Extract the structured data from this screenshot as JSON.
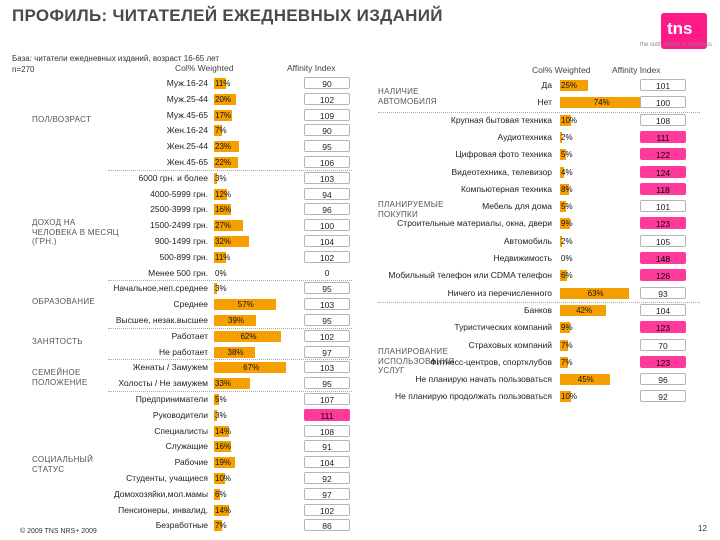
{
  "title": "ПРОФИЛЬ: ЧИТАТЕЛЕЙ ЕЖЕДНЕВНЫХ ИЗДАНИЙ",
  "logo": {
    "text": "tns",
    "tagline": "the sixth sense of business"
  },
  "base_line1": "База: читатели ежедневных изданий, возраст 16-65 лет",
  "base_line2": "n=270",
  "headers": {
    "col_weighted": "Col% Weighted",
    "affinity": "Affinity Index"
  },
  "footer": "© 2009 TNS NRS+ 2009",
  "page_number": "12",
  "colors": {
    "bar": "#f5a000",
    "highlight": "#ff3a9a"
  },
  "chart_data": [
    {
      "type": "bar",
      "title": "ПРОФИЛЬ: ЧИТАТЕЛЕЙ ЕЖЕДНЕВНЫХ ИЗДАНИЙ",
      "xlabel": "Col% Weighted",
      "ylabel": "",
      "xlim": [
        0,
        100
      ],
      "groups": [
        {
          "label": "ПОЛ/ВОЗРАСТ",
          "rows": [
            {
              "label": "Муж.16-24",
              "value": 11,
              "affinity": 90
            },
            {
              "label": "Муж.25-44",
              "value": 20,
              "affinity": 102
            },
            {
              "label": "Муж.45-65",
              "value": 17,
              "affinity": 109
            },
            {
              "label": "Жен.16-24",
              "value": 7,
              "affinity": 90
            },
            {
              "label": "Жен.25-44",
              "value": 23,
              "affinity": 95
            },
            {
              "label": "Жен.45-65",
              "value": 22,
              "affinity": 106
            }
          ]
        },
        {
          "label": "ДОХОД НА ЧЕЛОВЕКА В МЕСЯЦ (ГРН.)",
          "rows": [
            {
              "label": "6000 грн. и более",
              "value": 3,
              "affinity": 103
            },
            {
              "label": "4000-5999 грн.",
              "value": 12,
              "affinity": 94
            },
            {
              "label": "2500-3999 грн.",
              "value": 16,
              "affinity": 96
            },
            {
              "label": "1500-2499 грн.",
              "value": 27,
              "affinity": 100
            },
            {
              "label": "900-1499 грн.",
              "value": 32,
              "affinity": 104
            },
            {
              "label": "500-899 грн.",
              "value": 11,
              "affinity": 102
            },
            {
              "label": "Менее 500 грн.",
              "value": 0,
              "affinity": 0
            }
          ]
        },
        {
          "label": "ОБРАЗОВАНИЕ",
          "rows": [
            {
              "label": "Начальное,неп.среднее",
              "value": 3,
              "affinity": 95
            },
            {
              "label": "Среднее",
              "value": 57,
              "affinity": 103
            },
            {
              "label": "Высшее, незак.высшее",
              "value": 39,
              "affinity": 95
            }
          ]
        },
        {
          "label": "ЗАНЯТОСТЬ",
          "rows": [
            {
              "label": "Работает",
              "value": 62,
              "affinity": 102
            },
            {
              "label": "Не работает",
              "value": 38,
              "affinity": 97
            }
          ]
        },
        {
          "label": "СЕМЕЙНОЕ ПОЛОЖЕНИЕ",
          "rows": [
            {
              "label": "Женаты / Замужем",
              "value": 67,
              "affinity": 103
            },
            {
              "label": "Холосты / Не замужем",
              "value": 33,
              "affinity": 95
            }
          ]
        },
        {
          "label": "СОЦИАЛЬНЫЙ СТАТУС",
          "rows": [
            {
              "label": "Предприниматели",
              "value": 5,
              "affinity": 107
            },
            {
              "label": "Руководители",
              "value": 3,
              "affinity": 111,
              "highlight": true
            },
            {
              "label": "Специалисты",
              "value": 14,
              "affinity": 108
            },
            {
              "label": "Служащие",
              "value": 16,
              "affinity": 91
            },
            {
              "label": "Рабочие",
              "value": 19,
              "affinity": 104
            },
            {
              "label": "Студенты, учащиеся",
              "value": 10,
              "affinity": 92
            },
            {
              "label": "Домохозяйки,мол.мамы",
              "value": 6,
              "affinity": 97
            },
            {
              "label": "Пенсионеры, инвалид.",
              "value": 14,
              "affinity": 102
            },
            {
              "label": "Безработные",
              "value": 7,
              "affinity": 86
            }
          ]
        }
      ]
    },
    {
      "type": "bar",
      "title": "ПРОФИЛЬ: ЧИТАТЕЛЕЙ ЕЖЕДНЕВНЫХ ИЗДАНИЙ",
      "xlabel": "Col% Weighted",
      "ylabel": "",
      "xlim": [
        0,
        100
      ],
      "groups": [
        {
          "label": "НАЛИЧИЕ АВТОМОБИЛЯ",
          "rows": [
            {
              "label": "Да",
              "value": 25,
              "affinity": 101
            },
            {
              "label": "Нет",
              "value": 74,
              "affinity": 100
            }
          ]
        },
        {
          "label": "ПЛАНИРУЕМЫЕ ПОКУПКИ",
          "rows": [
            {
              "label": "Крупная бытовая техника",
              "value": 10,
              "affinity": 108
            },
            {
              "label": "Аудиотехника",
              "value": 2,
              "affinity": 111,
              "highlight": true
            },
            {
              "label": "Цифровая фото техника",
              "value": 5,
              "affinity": 122,
              "highlight": true
            },
            {
              "label": "Видеотехника, телевизор",
              "value": 4,
              "affinity": 124,
              "highlight": true
            },
            {
              "label": "Компьютерная техника",
              "value": 8,
              "affinity": 118,
              "highlight": true
            },
            {
              "label": "Мебель для дома",
              "value": 5,
              "affinity": 101
            },
            {
              "label": "Строительные материалы, окна, двери",
              "value": 9,
              "affinity": 123,
              "highlight": true
            },
            {
              "label": "Автомобиль",
              "value": 2,
              "affinity": 105
            },
            {
              "label": "Недвижимость",
              "value": 0,
              "affinity": 148,
              "highlight": true
            },
            {
              "label": "Мобильный телефон или CDMA телефон",
              "value": 6,
              "affinity": 126,
              "highlight": true
            },
            {
              "label": "Ничего из перечисленного",
              "value": 63,
              "affinity": 93
            }
          ]
        },
        {
          "label": "ПЛАНИРОВАНИЕ ИСПОЛЬЗОВАНИЯ УСЛУГ",
          "rows": [
            {
              "label": "Банков",
              "value": 42,
              "affinity": 104
            },
            {
              "label": "Туристических компаний",
              "value": 9,
              "affinity": 123,
              "highlight": true
            },
            {
              "label": "Страховых компаний",
              "value": 7,
              "affinity": 70
            },
            {
              "label": "Фитнесс-центров, спортклубов",
              "value": 7,
              "affinity": 123,
              "highlight": true
            },
            {
              "label": "Не планирую начать пользоваться",
              "value": 45,
              "affinity": 96
            },
            {
              "label": "Не планирую продолжать пользоваться",
              "value": 10,
              "affinity": 92
            }
          ]
        }
      ]
    }
  ]
}
